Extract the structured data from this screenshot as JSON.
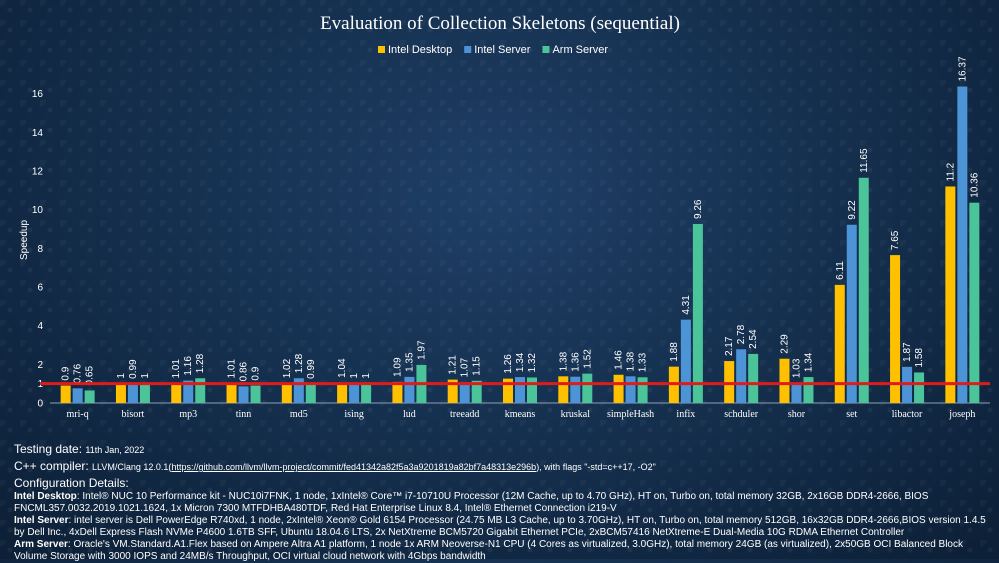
{
  "chart_data": {
    "type": "bar",
    "title": "Evaluation of Collection Skeletons (sequential)",
    "ylabel": "Speedup",
    "xlabel": "",
    "ylim": [
      0,
      18
    ],
    "y_ticks": [
      0,
      1,
      2,
      4,
      6,
      8,
      10,
      12,
      14,
      16
    ],
    "reference_line": {
      "y": 1,
      "color": "#e01b1b"
    },
    "legend_position": "top-center",
    "grid": false,
    "categories": [
      "mri-q",
      "bisort",
      "mp3",
      "tinn",
      "md5",
      "ising",
      "lud",
      "treeadd",
      "kmeans",
      "kruskal",
      "simpleHash",
      "infix",
      "schduler",
      "shor",
      "set",
      "libactor",
      "joseph"
    ],
    "series": [
      {
        "name": "Intel Desktop",
        "color": "#ffc000",
        "values": [
          0.9,
          1,
          1.01,
          1.01,
          1.02,
          1.04,
          1.09,
          1.21,
          1.26,
          1.38,
          1.46,
          1.88,
          2.17,
          2.29,
          6.11,
          7.65,
          11.2
        ]
      },
      {
        "name": "Intel Server",
        "color": "#4c94d6",
        "values": [
          0.76,
          0.99,
          1.16,
          0.86,
          1.28,
          1,
          1.35,
          1.07,
          1.34,
          1.36,
          1.38,
          4.31,
          2.78,
          1.03,
          9.22,
          1.87,
          16.37
        ]
      },
      {
        "name": "Arm Server",
        "color": "#4bc49a",
        "values": [
          0.65,
          1,
          1.28,
          0.9,
          0.99,
          1,
          1.97,
          1.15,
          1.32,
          1.52,
          1.33,
          9.26,
          2.54,
          1.34,
          11.65,
          1.58,
          10.36
        ]
      }
    ]
  },
  "footer": {
    "testing_date_label": "Testing date:",
    "testing_date_value": "11th Jan, 2022",
    "compiler_label": "C++ compiler:",
    "compiler_prefix": "LLVM/Clang 12.0.1(",
    "compiler_link": "https://github.com/llvm/llvm-project/commit/fed41342a82f5a3a9201819a82bf7a48313e296b",
    "compiler_suffix": "), with flags \"-std=c++17, -O2\"",
    "config_heading": "Configuration Details:",
    "intel_desktop_label": "Intel Desktop",
    "intel_desktop_text": ": Intel® NUC 10 Performance kit - NUC10i7FNK, 1 node, 1xIntel® Core™ i7-10710U Processor (12M Cache, up to 4.70 GHz), HT on, Turbo on, total memory 32GB, 2x16GB DDR4-2666, BIOS FNCML357.0032.2019.1021.1624, 1x Micron 7300 MTFDHBA480TDF, Red Hat Enterprise Linux 8.4, Intel® Ethernet Connection i219-V",
    "intel_server_label": "Intel Server",
    "intel_server_text": ": intel server is Dell PowerEdge R740xd, 1 node, 2xIntel® Xeon® Gold 6154 Processor (24.75 MB L3 Cache, up to 3.70GHz), HT on, Turbo on, total memory 512GB, 16x32GB DDR4-2666,BIOS version 1.4.5 by Dell Inc., 4xDell Express Flash NVMe P4600 1.6TB SFF, Ubuntu 18.04.6 LTS, 2x NetXtreme BCM5720 Gigabit Ethernet PCIe, 2xBCM57416 NetXtreme-E Dual-Media 10G RDMA Ethernet Controller",
    "arm_server_label": "Arm Server",
    "arm_server_text": ": Oracle's VM.Standard.A1.Flex based on Ampere Altra A1 platform, 1 node 1x ARM Neoverse-N1 CPU (4 Cores as virtualized, 3.0GHz), total memory 24GB (as virtualized), 2x50GB OCI Balanced Block Volume Storage with 3000 IOPS and 24MB/s Throughput, OCI virtual cloud network with 4Gbps bandwidth"
  }
}
